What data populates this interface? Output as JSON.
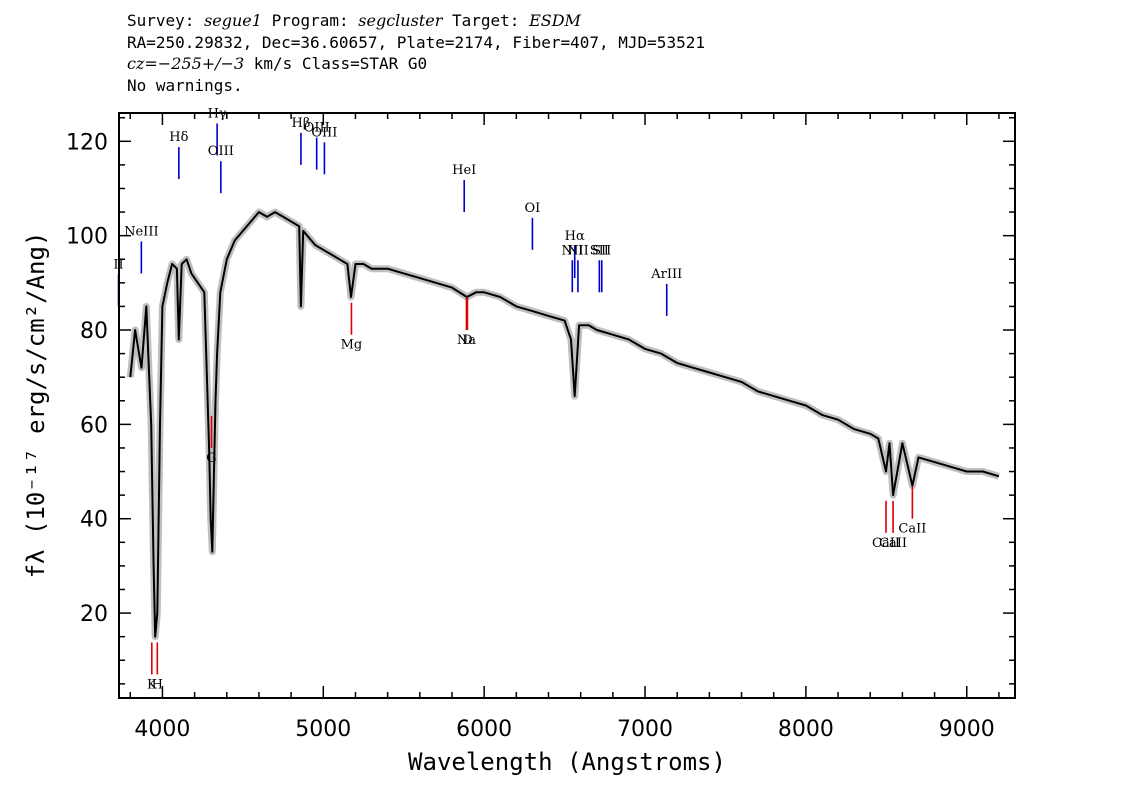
{
  "header": {
    "survey_label": "Survey:",
    "survey": "segue1",
    "program_label": "Program:",
    "program": "segcluster",
    "target_label": "Target:",
    "target": "ESDM",
    "line2": "RA=250.29832, Dec=36.60657, Plate=2174, Fiber=407, MJD=53521",
    "cz_label": "cz=",
    "cz_value": "−255+/−3",
    "cz_rest": " km/s Class=STAR G0",
    "warnings": "No warnings."
  },
  "chart_data": {
    "type": "line",
    "xlabel": "Wavelength (Angstroms)",
    "ylabel": "fλ (10⁻¹⁷ erg/s/cm²/Ang)",
    "xlim": [
      3730,
      9300
    ],
    "ylim": [
      2,
      126
    ],
    "x_ticks": [
      4000,
      5000,
      6000,
      7000,
      8000,
      9000
    ],
    "y_ticks": [
      20,
      40,
      60,
      80,
      100,
      120
    ],
    "grid": false,
    "colors": {
      "flux": "#000000",
      "error": "#bfbfbf",
      "emission": "#0000cc",
      "absorption": "#dd0000"
    },
    "series": [
      {
        "x": [
          3800,
          3830,
          3870,
          3900,
          3930,
          3945,
          3955,
          3968,
          3985,
          4000,
          4030,
          4060,
          4090,
          4102,
          4120,
          4150,
          4180,
          4220,
          4260,
          4290,
          4300,
          4310,
          4330,
          4340,
          4360,
          4400,
          4450,
          4500,
          4550,
          4600,
          4650,
          4700,
          4750,
          4800,
          4850,
          4861,
          4875,
          4900,
          4950,
          5000,
          5050,
          5100,
          5150,
          5172,
          5200,
          5250,
          5300,
          5350,
          5400,
          5500,
          5600,
          5700,
          5800,
          5893,
          5950,
          6000,
          6100,
          6200,
          6300,
          6400,
          6500,
          6540,
          6563,
          6590,
          6650,
          6700,
          6800,
          6900,
          7000,
          7100,
          7200,
          7300,
          7400,
          7500,
          7600,
          7700,
          7800,
          7900,
          8000,
          8100,
          8200,
          8300,
          8400,
          8450,
          8498,
          8520,
          8542,
          8600,
          8662,
          8700,
          8800,
          8900,
          9000,
          9100,
          9200
        ],
        "y": [
          70,
          80,
          72,
          85,
          60,
          30,
          15,
          20,
          60,
          85,
          90,
          94,
          93,
          78,
          94,
          95,
          92,
          90,
          88,
          55,
          40,
          33,
          65,
          75,
          88,
          95,
          99,
          101,
          103,
          105,
          104,
          105,
          104,
          103,
          102,
          85,
          101,
          100,
          98,
          97,
          96,
          95,
          94,
          87,
          94,
          94,
          93,
          93,
          93,
          92,
          91,
          90,
          89,
          87,
          88,
          88,
          87,
          85,
          84,
          83,
          82,
          78,
          66,
          81,
          81,
          80,
          79,
          78,
          76,
          75,
          73,
          72,
          71,
          70,
          69,
          67,
          66,
          65,
          64,
          62,
          61,
          59,
          58,
          57,
          50,
          56,
          45,
          56,
          47,
          53,
          52,
          51,
          50,
          50,
          49
        ]
      }
    ],
    "emission_lines": [
      {
        "label": "II",
        "x": 3727,
        "level": 85
      },
      {
        "label": "NeIII",
        "x": 3869,
        "level": 92
      },
      {
        "label": "Hδ",
        "x": 4102,
        "level": 112
      },
      {
        "label": "Hγ",
        "x": 4340,
        "level": 117
      },
      {
        "label": "OIII",
        "x": 4363,
        "level": 109
      },
      {
        "label": "Hβ",
        "x": 4861,
        "level": 115
      },
      {
        "label": "OIII",
        "x": 4959,
        "level": 114
      },
      {
        "label": "OIII",
        "x": 5007,
        "level": 113
      },
      {
        "label": "HeI",
        "x": 5876,
        "level": 105
      },
      {
        "label": "OI",
        "x": 6300,
        "level": 97
      },
      {
        "label": "NII",
        "x": 6548,
        "level": 88
      },
      {
        "label": "Hα",
        "x": 6563,
        "level": 91
      },
      {
        "label": "NII",
        "x": 6583,
        "level": 88
      },
      {
        "label": "SII",
        "x": 6716,
        "level": 88
      },
      {
        "label": "SII",
        "x": 6731,
        "level": 88
      },
      {
        "label": "ArIII",
        "x": 7135,
        "level": 83
      }
    ],
    "absorption_lines": [
      {
        "label": "K",
        "x": 3934,
        "level": 7
      },
      {
        "label": "H",
        "x": 3968,
        "level": 7
      },
      {
        "label": "G",
        "x": 4305,
        "level": 55
      },
      {
        "label": "Mg",
        "x": 5175,
        "level": 79
      },
      {
        "label": "Na",
        "x": 5890,
        "level": 80
      },
      {
        "label": "D",
        "x": 5896,
        "level": 80
      },
      {
        "label": "CaII",
        "x": 8498,
        "level": 37
      },
      {
        "label": "CaII",
        "x": 8542,
        "level": 37
      },
      {
        "label": "CaII",
        "x": 8662,
        "level": 40
      }
    ]
  }
}
